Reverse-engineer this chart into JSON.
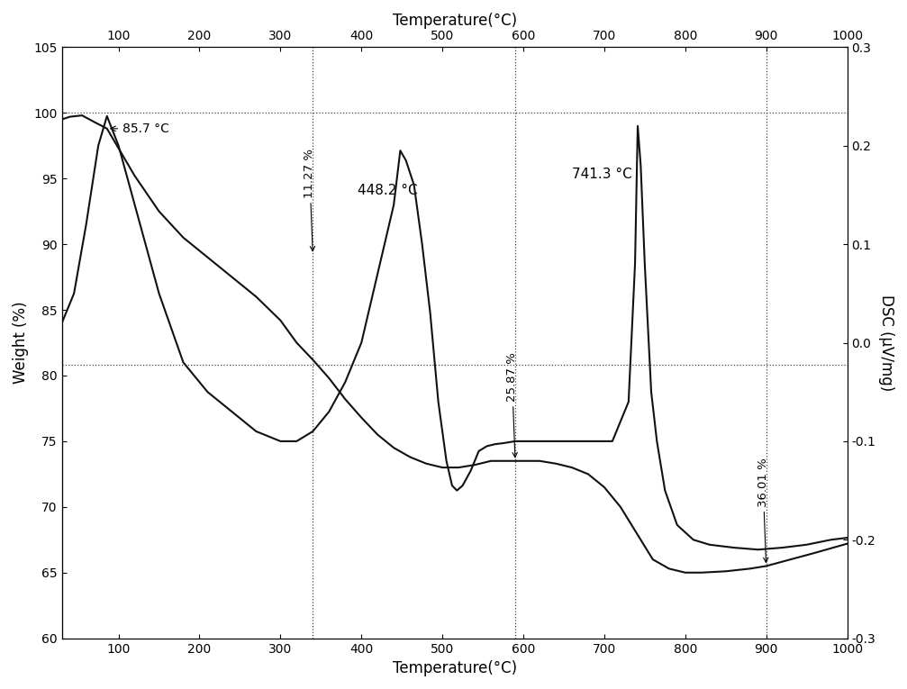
{
  "title_top": "Temperature(°C)",
  "xlabel": "Temperature(°C)",
  "ylabel_left": "Weight (%)",
  "ylabel_right": "DSC (μV/mg)",
  "xlim": [
    30,
    1000
  ],
  "ylim_left": [
    60,
    105
  ],
  "ylim_right": [
    -0.3,
    0.3
  ],
  "xticks": [
    100,
    200,
    300,
    400,
    500,
    600,
    700,
    800,
    900,
    1000
  ],
  "yticks_left": [
    60,
    65,
    70,
    75,
    80,
    85,
    90,
    95,
    100,
    105
  ],
  "yticks_right": [
    -0.3,
    -0.2,
    -0.1,
    0.0,
    0.1,
    0.2,
    0.3
  ],
  "tga_color": "#111111",
  "dsc_color": "#111111",
  "bg_color": "#ffffff",
  "line_width": 1.5
}
